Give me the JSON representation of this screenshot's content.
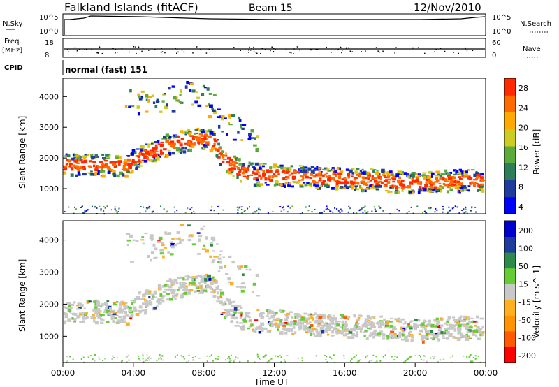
{
  "header": {
    "station": "Falkland Islands (fitACF)",
    "beam": "Beam 15",
    "date": "12/Nov/2010"
  },
  "strips": {
    "nsky_label": "N.Sky",
    "nsky_ticks": [
      "10^5",
      "10^0"
    ],
    "nsearch_label": "N.Search",
    "nsearch_ticks": [
      "10^5",
      "10^0"
    ],
    "freq_label": "Freq.",
    "freq_unit": "[MHz]",
    "freq_ticks": [
      "18",
      "8"
    ],
    "nave_label": "Nave",
    "nave_ticks": [
      "60",
      "0"
    ],
    "cpid_label": "CPID",
    "cpid_value": "normal (fast) 151"
  },
  "chart_data": [
    {
      "type": "heatmap",
      "panel": "power",
      "ylabel": "Slant Range [km]",
      "yticks": [
        "4000",
        "3000",
        "2000",
        "1000"
      ],
      "ylim": [
        180,
        4600
      ],
      "xlim": [
        0,
        24
      ],
      "colorbar": {
        "label": "Power [dB]",
        "ticks": [
          "28",
          "24",
          "20",
          "16",
          "12",
          "8",
          "4"
        ],
        "range": [
          0,
          30
        ],
        "colors": [
          "#0000ff",
          "#1e3c9c",
          "#2e7d5a",
          "#5aaa3c",
          "#cccc22",
          "#ffaa00",
          "#ff6a00",
          "#ff2a00"
        ]
      },
      "echo_bands": [
        {
          "x": [
            0,
            1.5,
            3,
            3.5,
            4,
            5,
            6,
            7,
            8,
            8.5,
            9,
            10,
            11,
            12,
            14,
            16,
            18,
            20,
            22,
            24
          ],
          "range_km": [
            1800,
            1800,
            1800,
            1750,
            2000,
            2200,
            2500,
            2600,
            2700,
            2500,
            2000,
            1600,
            1500,
            1500,
            1400,
            1350,
            1300,
            1200,
            1300,
            1300
          ]
        },
        {
          "x": [
            3.5,
            5,
            6,
            7,
            8,
            9,
            10,
            11
          ],
          "range_km": [
            3800,
            3800,
            4000,
            4100,
            4000,
            3300,
            2900,
            2700
          ]
        }
      ]
    },
    {
      "type": "heatmap",
      "panel": "velocity",
      "ylabel": "Slant Range [km]",
      "yticks": [
        "4000",
        "3000",
        "2000",
        "1000"
      ],
      "ylim": [
        180,
        4600
      ],
      "xlim": [
        0,
        24
      ],
      "colorbar": {
        "label": "Velocity [m s^-1]",
        "ticks": [
          "200",
          "100",
          "50",
          "15",
          "-15",
          "-50",
          "-100",
          "-200"
        ],
        "range": [
          -250,
          250
        ],
        "colors": [
          "#ff0000",
          "#ff5a00",
          "#ff9400",
          "#ffb020",
          "#c8c8c8",
          "#66cc33",
          "#2e8a4a",
          "#1e3c9c",
          "#0000cc"
        ]
      }
    }
  ],
  "xaxis": {
    "label": "Time UT",
    "ticks": [
      "00:00",
      "04:00",
      "08:00",
      "12:00",
      "16:00",
      "20:00",
      "00:00"
    ],
    "tick_hours": [
      0,
      4,
      8,
      12,
      16,
      20,
      24
    ]
  }
}
